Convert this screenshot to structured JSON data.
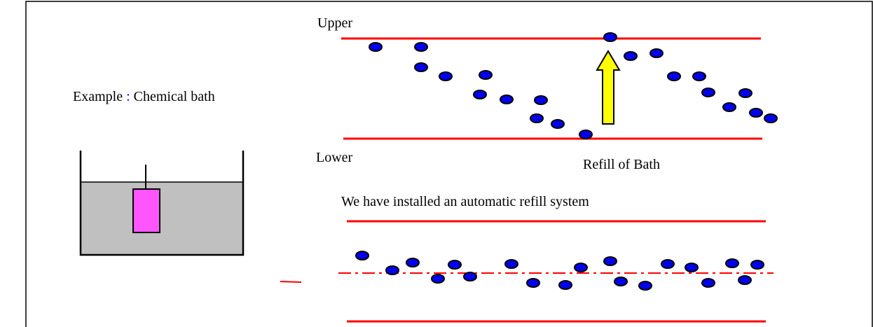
{
  "example": {
    "label": "Example",
    "separator": ":",
    "subject": "Chemical bath"
  },
  "chart_top": {
    "upper_label": "Upper",
    "lower_label": "Lower",
    "arrow_label": "Refill of Bath"
  },
  "chart_bottom": {
    "caption": "We have installed an automatic refill system"
  }
}
